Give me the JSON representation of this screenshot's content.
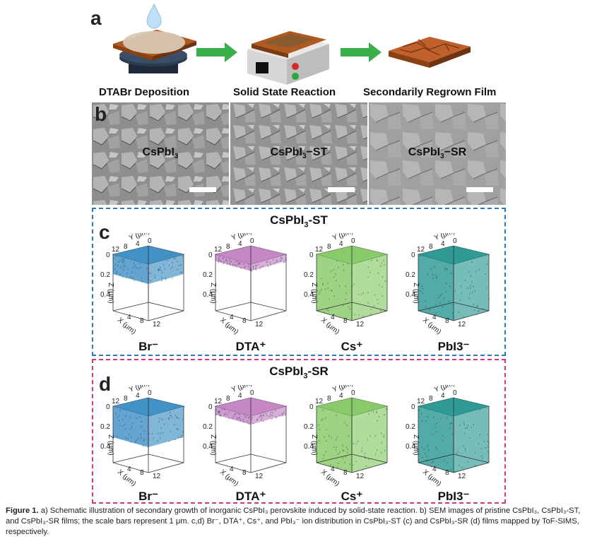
{
  "panel_a": {
    "letter": "a",
    "steps": [
      "DTABr Deposition",
      "Solid State Reaction",
      "Secondarily Regrown Film"
    ]
  },
  "panel_b": {
    "letter": "b",
    "images": [
      "CsPbI3",
      "CsPbI3−ST",
      "CsPbI3−SR"
    ]
  },
  "panel_c": {
    "letter": "c",
    "title": "CsPbI3-ST",
    "border_color": "#2a7ab8",
    "ions": [
      "Br⁻",
      "DTA⁺",
      "Cs⁺",
      "PbI3⁻"
    ]
  },
  "panel_d": {
    "letter": "d",
    "title": "CsPbI3-SR",
    "border_color": "#d63a6a",
    "ions": [
      "Br⁻",
      "DTA⁺",
      "Cs⁺",
      "PbI3⁻"
    ]
  },
  "cube_axes": {
    "y_label": "Y (μm)",
    "y_ticks": [
      "12",
      "8",
      "4",
      "0"
    ],
    "z_label": "Z (μm)",
    "z_ticks": [
      "0",
      "0.2",
      "0.4"
    ],
    "x_label": "X (μm)",
    "x_ticks": [
      "4",
      "8",
      "12"
    ]
  },
  "ion_colors": {
    "br": "#2f86c0",
    "dta": "#c07ac0",
    "cs": "#7cc45a",
    "pbi3": "#1a8f8a"
  },
  "caption": {
    "figure_label": "Figure 1.",
    "text": "a) Schematic illustration of secondary growth of inorganic CsPbI₃ perovskite induced by solid-state reaction. b) SEM images of pristine CsPbI₃, CsPbI₃-ST, and CsPbI₃-SR films; the scale bars represent 1 μm. c,d) Br⁻, DTA⁺, Cs⁺, and PbI₃⁻ ion distribution in CsPbI₃-ST (c) and CsPbI₃-SR (d) films mapped by ToF-SIMS, respectively."
  }
}
